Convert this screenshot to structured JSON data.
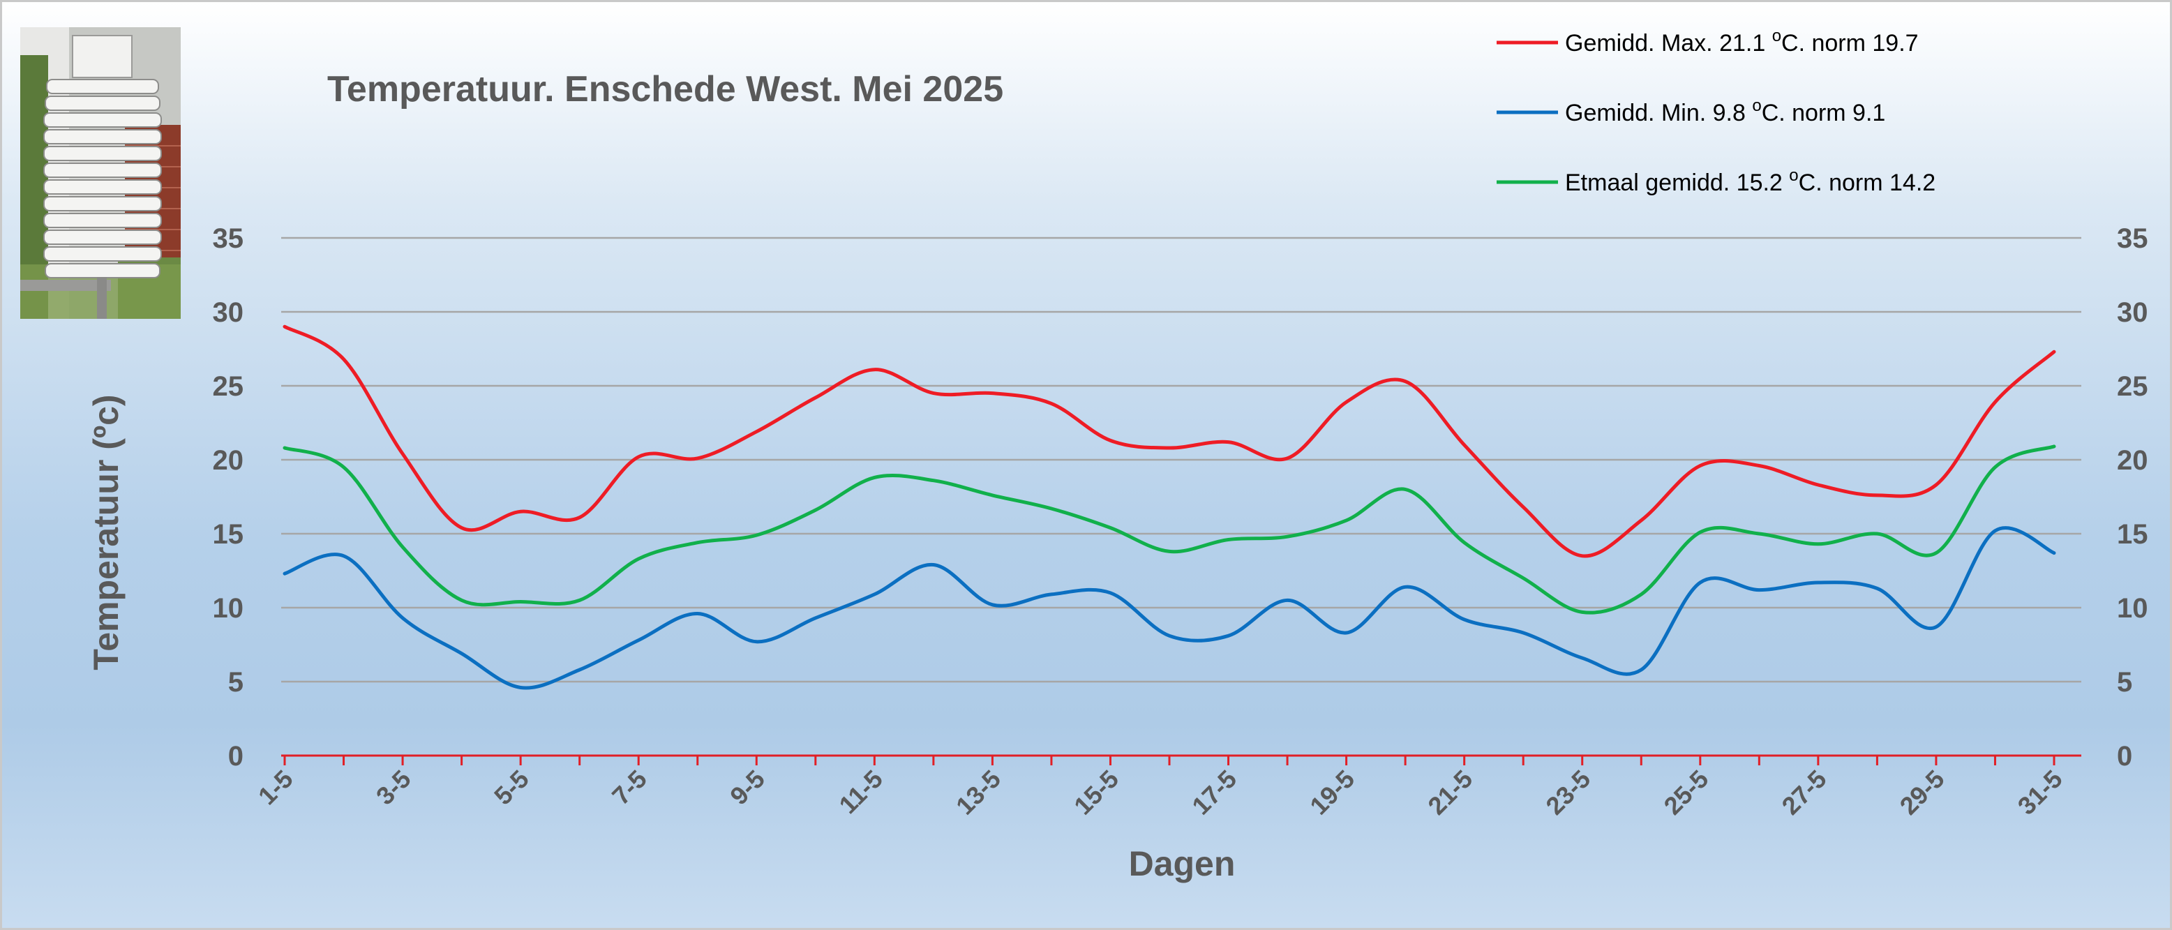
{
  "colors": {
    "max": "#ee1c25",
    "min": "#0b6fc1",
    "avg": "#11b04b",
    "axis_text": "#595959",
    "grid": "#a6a6a6",
    "baseline": "#e11f26"
  },
  "chart_data": {
    "type": "line",
    "title": "Temperatuur. Enschede West. Mei 2025",
    "xlabel": "Dagen",
    "ylabel": "Temperatuur (ºc)",
    "ylim": [
      0,
      35
    ],
    "yticks": [
      0,
      5,
      10,
      15,
      20,
      25,
      30,
      35
    ],
    "grid": true,
    "secondary_y_axis": true,
    "legend_position": "top-right",
    "x": [
      "1-5",
      "2-5",
      "3-5",
      "4-5",
      "5-5",
      "6-5",
      "7-5",
      "8-5",
      "9-5",
      "10-5",
      "11-5",
      "12-5",
      "13-5",
      "14-5",
      "15-5",
      "16-5",
      "17-5",
      "18-5",
      "19-5",
      "20-5",
      "21-5",
      "22-5",
      "23-5",
      "24-5",
      "25-5",
      "26-5",
      "27-5",
      "28-5",
      "29-5",
      "30-5",
      "31-5"
    ],
    "x_tick_labels": [
      "1-5",
      "3-5",
      "5-5",
      "7-5",
      "9-5",
      "11-5",
      "13-5",
      "15-5",
      "17-5",
      "19-5",
      "21-5",
      "23-5",
      "25-5",
      "27-5",
      "29-5",
      "31-5"
    ],
    "series": [
      {
        "key": "max",
        "legend": {
          "prefix": "Gemidd. Max. 21.1  ",
          "sup": "o",
          "suffix": "C. norm 19.7"
        },
        "values": [
          29.0,
          26.8,
          20.4,
          15.4,
          16.5,
          16.1,
          20.2,
          20.1,
          21.9,
          24.2,
          26.1,
          24.5,
          24.5,
          23.8,
          21.3,
          20.8,
          21.2,
          20.1,
          23.9,
          25.3,
          21.0,
          16.8,
          13.5,
          15.9,
          19.6,
          19.6,
          18.3,
          17.6,
          18.3,
          23.9,
          27.3
        ]
      },
      {
        "key": "min",
        "legend": {
          "prefix": "Gemidd. Min. 9.8  ",
          "sup": "o",
          "suffix": "C. norm 9.1"
        },
        "values": [
          12.3,
          13.5,
          9.3,
          6.9,
          4.6,
          5.8,
          7.8,
          9.6,
          7.7,
          9.3,
          10.9,
          12.9,
          10.2,
          10.9,
          11.0,
          8.1,
          8.1,
          10.5,
          8.3,
          11.4,
          9.2,
          8.3,
          6.6,
          5.8,
          11.7,
          11.2,
          11.7,
          11.3,
          8.7,
          15.2,
          13.7
        ]
      },
      {
        "key": "avg",
        "legend": {
          "prefix": "Etmaal gemidd. 15.2  ",
          "sup": "o",
          "suffix": "C. norm 14.2"
        },
        "values": [
          20.8,
          19.5,
          14.1,
          10.5,
          10.4,
          10.5,
          13.3,
          14.4,
          14.9,
          16.6,
          18.8,
          18.6,
          17.6,
          16.7,
          15.4,
          13.8,
          14.6,
          14.8,
          15.9,
          18.0,
          14.4,
          12.0,
          9.7,
          10.9,
          15.1,
          15.0,
          14.3,
          15.0,
          13.7,
          19.5,
          20.9
        ]
      }
    ]
  }
}
